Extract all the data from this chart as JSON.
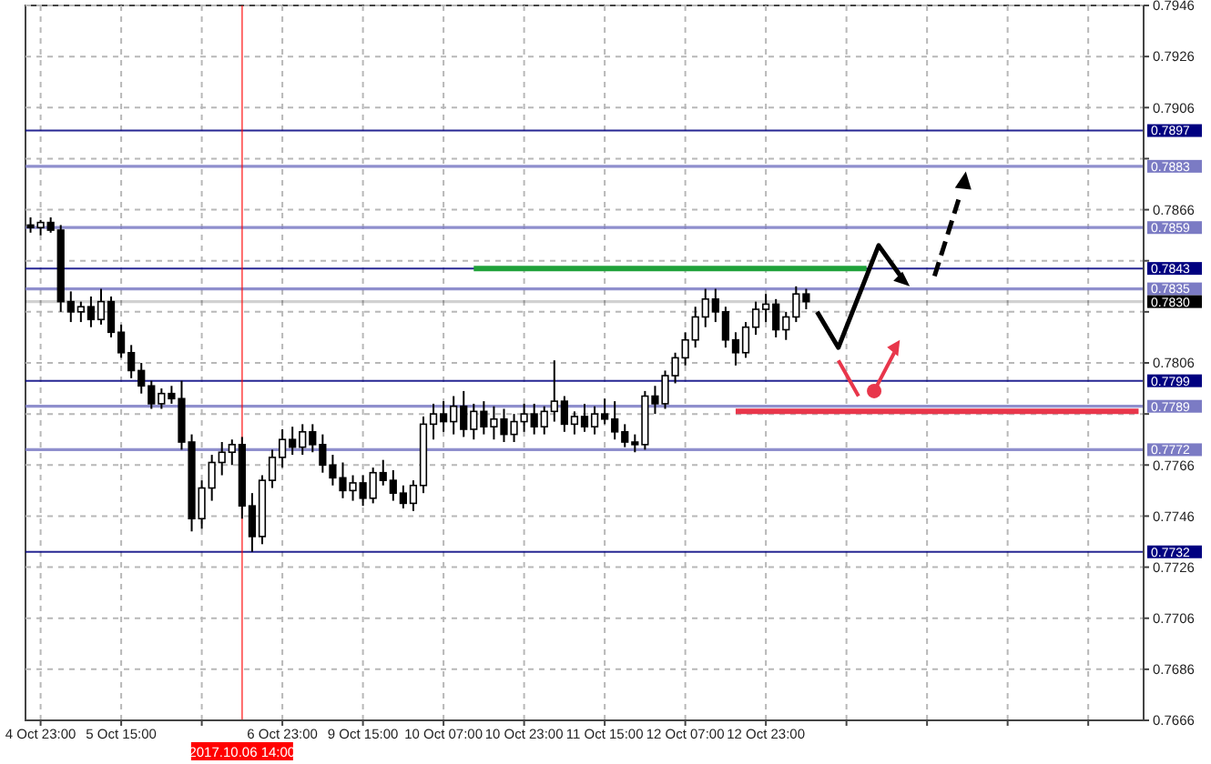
{
  "chart_data": {
    "type": "candlestick",
    "color": "#000000",
    "categories": [
      null,
      "4 Oct 23:00",
      null,
      null,
      null,
      null,
      null,
      null,
      null,
      "5 Oct 15:00",
      null,
      null,
      null,
      null,
      null,
      null,
      null,
      null,
      null,
      null,
      null,
      "2017.10.06 14:00",
      null,
      null,
      null,
      "6 Oct 23:00",
      null,
      null,
      null,
      null,
      null,
      null,
      null,
      "9 Oct 15:00",
      null,
      null,
      null,
      null,
      null,
      null,
      null,
      "10 Oct 07:00",
      null,
      null,
      null,
      null,
      null,
      null,
      null,
      "10 Oct 23:00",
      null,
      null,
      null,
      null,
      null,
      null,
      null,
      "11 Oct 15:00",
      null,
      null,
      null,
      null,
      null,
      null,
      null,
      "12 Oct 07:00",
      null,
      null,
      null,
      null,
      null,
      null,
      null,
      "12 Oct 23:00",
      null,
      null,
      null,
      null,
      null,
      null,
      null,
      null,
      null,
      null,
      null,
      null,
      null,
      null,
      null,
      null,
      null,
      null,
      null,
      null,
      null,
      null,
      null,
      null,
      null,
      null,
      null,
      null,
      null,
      null,
      null,
      null,
      null,
      null,
      null,
      null,
      null
    ],
    "ohlc": [
      [
        0.786,
        0.7863,
        0.7857,
        0.7859
      ],
      [
        0.7859,
        0.7862,
        0.7856,
        0.7861
      ],
      [
        0.7861,
        0.7863,
        0.7857,
        0.7858
      ],
      [
        0.7858,
        0.786,
        0.7826,
        0.783
      ],
      [
        0.783,
        0.7834,
        0.7822,
        0.7826
      ],
      [
        0.7826,
        0.783,
        0.7822,
        0.7828
      ],
      [
        0.7828,
        0.7832,
        0.782,
        0.7823
      ],
      [
        0.7823,
        0.7835,
        0.7821,
        0.783
      ],
      [
        0.783,
        0.7832,
        0.7816,
        0.7818
      ],
      [
        0.7818,
        0.7821,
        0.7808,
        0.781
      ],
      [
        0.781,
        0.7813,
        0.78,
        0.7803
      ],
      [
        0.7803,
        0.7806,
        0.7794,
        0.7797
      ],
      [
        0.7797,
        0.7799,
        0.7788,
        0.779
      ],
      [
        0.779,
        0.7796,
        0.7788,
        0.7794
      ],
      [
        0.7794,
        0.7797,
        0.779,
        0.7792
      ],
      [
        0.7792,
        0.7799,
        0.7772,
        0.7775
      ],
      [
        0.7775,
        0.7778,
        0.774,
        0.7745
      ],
      [
        0.7745,
        0.776,
        0.7741,
        0.7757
      ],
      [
        0.7757,
        0.777,
        0.7752,
        0.7767
      ],
      [
        0.7767,
        0.7775,
        0.7762,
        0.7771
      ],
      [
        0.7771,
        0.7776,
        0.7766,
        0.7774
      ],
      [
        0.7774,
        0.7777,
        0.7745,
        0.775
      ],
      [
        0.775,
        0.7755,
        0.7732,
        0.7738
      ],
      [
        0.7738,
        0.7762,
        0.7735,
        0.776
      ],
      [
        0.776,
        0.7772,
        0.7757,
        0.7769
      ],
      [
        0.7769,
        0.778,
        0.7765,
        0.7776
      ],
      [
        0.7776,
        0.7781,
        0.777,
        0.7773
      ],
      [
        0.7773,
        0.7782,
        0.777,
        0.7779
      ],
      [
        0.7779,
        0.7782,
        0.7771,
        0.7774
      ],
      [
        0.7774,
        0.7778,
        0.7763,
        0.7766
      ],
      [
        0.7766,
        0.777,
        0.7758,
        0.7761
      ],
      [
        0.7761,
        0.7767,
        0.7753,
        0.7756
      ],
      [
        0.7756,
        0.7762,
        0.7752,
        0.7759
      ],
      [
        0.7759,
        0.7762,
        0.775,
        0.7753
      ],
      [
        0.7753,
        0.7765,
        0.7751,
        0.7763
      ],
      [
        0.7763,
        0.7768,
        0.7758,
        0.776
      ],
      [
        0.776,
        0.7764,
        0.7752,
        0.7755
      ],
      [
        0.7755,
        0.7758,
        0.7749,
        0.7751
      ],
      [
        0.7751,
        0.776,
        0.7748,
        0.7758
      ],
      [
        0.7758,
        0.7785,
        0.7755,
        0.7782
      ],
      [
        0.7782,
        0.779,
        0.7776,
        0.7786
      ],
      [
        0.7786,
        0.7791,
        0.7779,
        0.7783
      ],
      [
        0.7783,
        0.7793,
        0.7778,
        0.7789
      ],
      [
        0.7789,
        0.7795,
        0.7777,
        0.778
      ],
      [
        0.778,
        0.779,
        0.7776,
        0.7787
      ],
      [
        0.7787,
        0.7791,
        0.7778,
        0.7781
      ],
      [
        0.7781,
        0.7789,
        0.7776,
        0.7784
      ],
      [
        0.7784,
        0.7788,
        0.7775,
        0.7778
      ],
      [
        0.7778,
        0.7786,
        0.7775,
        0.7783
      ],
      [
        0.7783,
        0.779,
        0.7779,
        0.7786
      ],
      [
        0.7786,
        0.779,
        0.7778,
        0.7781
      ],
      [
        0.7781,
        0.7789,
        0.7778,
        0.7787
      ],
      [
        0.7787,
        0.7807,
        0.7783,
        0.7791
      ],
      [
        0.7791,
        0.7793,
        0.7779,
        0.7782
      ],
      [
        0.7782,
        0.7787,
        0.7778,
        0.7785
      ],
      [
        0.7785,
        0.779,
        0.7779,
        0.7781
      ],
      [
        0.7781,
        0.7789,
        0.7778,
        0.7786
      ],
      [
        0.7786,
        0.7792,
        0.7782,
        0.7784
      ],
      [
        0.7784,
        0.7791,
        0.7776,
        0.7779
      ],
      [
        0.7779,
        0.7782,
        0.7773,
        0.7775
      ],
      [
        0.7775,
        0.7778,
        0.7771,
        0.7774
      ],
      [
        0.7774,
        0.7795,
        0.7772,
        0.7793
      ],
      [
        0.7793,
        0.7797,
        0.7786,
        0.779
      ],
      [
        0.779,
        0.7803,
        0.7788,
        0.7801
      ],
      [
        0.7801,
        0.781,
        0.7798,
        0.7808
      ],
      [
        0.7808,
        0.7818,
        0.7805,
        0.7815
      ],
      [
        0.7815,
        0.7828,
        0.7812,
        0.7824
      ],
      [
        0.7824,
        0.7835,
        0.782,
        0.7831
      ],
      [
        0.7831,
        0.7835,
        0.7822,
        0.7826
      ],
      [
        0.7826,
        0.7828,
        0.7812,
        0.7815
      ],
      [
        0.7815,
        0.7818,
        0.7805,
        0.781
      ],
      [
        0.781,
        0.7822,
        0.7808,
        0.782
      ],
      [
        0.782,
        0.783,
        0.7817,
        0.7827
      ],
      [
        0.7827,
        0.7833,
        0.7822,
        0.7829
      ],
      [
        0.7829,
        0.7831,
        0.7816,
        0.7819
      ],
      [
        0.7819,
        0.7826,
        0.7815,
        0.7824
      ],
      [
        0.7824,
        0.7836,
        0.7822,
        0.7833
      ],
      [
        0.7833,
        0.7835,
        0.7827,
        0.783
      ],
      null,
      null,
      null,
      null,
      null,
      null,
      null,
      null,
      null,
      null,
      null,
      null,
      null,
      null,
      null,
      null,
      null,
      null,
      null,
      null,
      null,
      null,
      null,
      null,
      null,
      null,
      null,
      null,
      null,
      null,
      null,
      null,
      null
    ],
    "series": [
      {
        "type": "line",
        "color": "#1fa13a",
        "values": [
          null,
          null,
          null,
          null,
          null,
          null,
          null,
          null,
          null,
          null,
          null,
          null,
          null,
          null,
          null,
          null,
          null,
          null,
          null,
          null,
          null,
          null,
          null,
          null,
          null,
          null,
          null,
          null,
          null,
          null,
          null,
          null,
          null,
          null,
          null,
          null,
          null,
          null,
          null,
          null,
          null,
          null,
          null,
          null,
          0.7843,
          0.7843,
          0.7843,
          0.7843,
          0.7843,
          0.7843,
          0.7843,
          0.7843,
          0.7843,
          0.7843,
          0.7843,
          0.7843,
          0.7843,
          0.7843,
          0.7843,
          0.7843,
          0.7843,
          0.7843,
          0.7843,
          0.7843,
          0.7843,
          0.7843,
          0.7843,
          0.7843,
          0.7843,
          0.7843,
          0.7843,
          0.7843,
          0.7843,
          0.7843,
          0.7843,
          0.7843,
          0.7843,
          0.7843,
          0.7843,
          0.7843,
          0.7843,
          0.7843,
          0.7843,
          0.7843,
          null,
          null,
          null,
          null,
          null,
          null,
          null,
          null,
          null,
          null,
          null,
          null,
          null,
          null,
          null,
          null,
          null,
          null,
          null,
          null,
          null,
          null,
          null,
          null,
          null,
          null,
          null
        ]
      },
      {
        "type": "line",
        "color": "#e8364b",
        "values": [
          null,
          null,
          null,
          null,
          null,
          null,
          null,
          null,
          null,
          null,
          null,
          null,
          null,
          null,
          null,
          null,
          null,
          null,
          null,
          null,
          null,
          null,
          null,
          null,
          null,
          null,
          null,
          null,
          null,
          null,
          null,
          null,
          null,
          null,
          null,
          null,
          null,
          null,
          null,
          null,
          null,
          null,
          null,
          null,
          null,
          null,
          null,
          null,
          null,
          null,
          null,
          null,
          null,
          null,
          null,
          null,
          null,
          null,
          null,
          null,
          null,
          null,
          null,
          null,
          null,
          null,
          null,
          null,
          null,
          null,
          0.7787,
          0.7787,
          0.7787,
          0.7787,
          0.7787,
          0.7787,
          0.7787,
          0.7787,
          0.7787,
          0.7787,
          0.7787,
          0.7787,
          0.7787,
          0.7787,
          0.7787,
          0.7787,
          0.7787,
          0.7787,
          0.7787,
          0.7787,
          0.7787,
          0.7787,
          0.7787,
          0.7787,
          0.7787,
          0.7787,
          0.7787,
          0.7787,
          0.7787,
          0.7787,
          0.7787,
          0.7787,
          0.7787,
          0.7787,
          0.7787,
          0.7787,
          0.7787,
          0.7787,
          0.7787,
          0.7787,
          0.7787
        ]
      }
    ],
    "ylim": [
      0.7666,
      0.7946
    ],
    "yticks": [
      0.7946,
      0.7926,
      0.7906,
      {
        "value": 0.7886,
        "label": null
      },
      0.7866,
      {
        "value": 0.7846,
        "label": null
      },
      {
        "value": 0.7826,
        "label": null
      },
      0.7806,
      {
        "value": 0.7786,
        "label": null
      },
      0.7766,
      0.7746,
      0.7726,
      0.7706,
      0.7686,
      0.7666
    ],
    "grid": true,
    "ref_lines": [
      {
        "axis": "y",
        "value": 0.7897,
        "label": "0.7897",
        "color": "#000080"
      },
      {
        "axis": "y",
        "value": 0.7883,
        "label": "0.7883",
        "color": "#7b7bc4"
      },
      {
        "axis": "y",
        "value": 0.7859,
        "label": "0.7859",
        "color": "#7b7bc4"
      },
      {
        "axis": "y",
        "value": 0.7843,
        "label": "0.7843",
        "color": "#000080"
      },
      {
        "axis": "y",
        "value": 0.7835,
        "label": "0.7835",
        "color": "#7b7bc4"
      },
      {
        "axis": "y",
        "value": 0.783,
        "label": "0.7830",
        "color": "#000000"
      },
      {
        "axis": "y",
        "value": 0.7799,
        "label": "0.7799",
        "color": "#000080"
      },
      {
        "axis": "y",
        "value": 0.7789,
        "label": "0.7789",
        "color": "#7b7bc4"
      },
      {
        "axis": "y",
        "value": 0.7772,
        "label": "0.7772",
        "color": "#7b7bc4"
      },
      {
        "axis": "y",
        "value": 0.7732,
        "label": "0.7732",
        "color": "#000080"
      },
      {
        "axis": "x",
        "value": "2017.10.06 14:00",
        "color": "#ff0000"
      }
    ]
  }
}
